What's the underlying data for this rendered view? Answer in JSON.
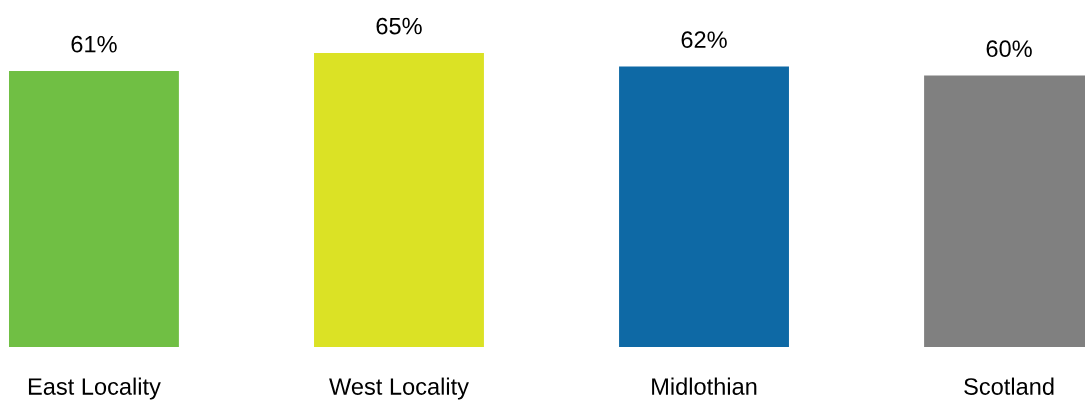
{
  "chart_data": {
    "type": "bar",
    "categories": [
      "East Locality",
      "West Locality",
      "Midlothian",
      "Scotland"
    ],
    "values": [
      61,
      65,
      62,
      60
    ],
    "colors": [
      "#70bf44",
      "#dbe225",
      "#0e69a5",
      "#808080"
    ],
    "value_labels": [
      "61%",
      "65%",
      "62%",
      "60%"
    ],
    "grid": false,
    "legend": false
  }
}
